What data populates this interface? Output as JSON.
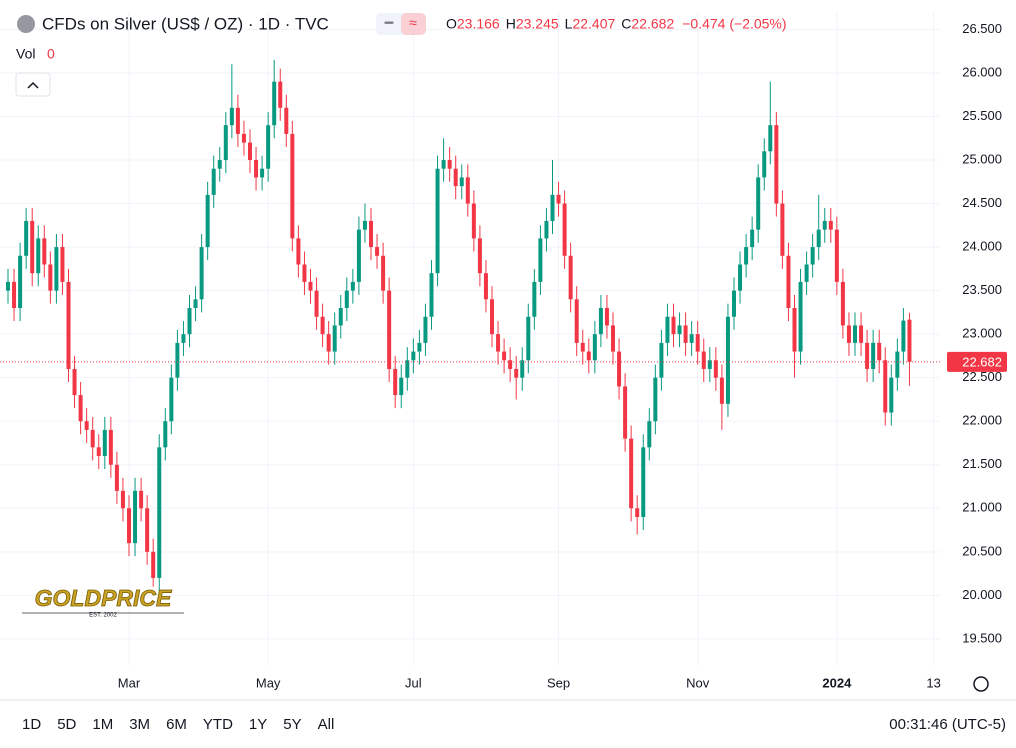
{
  "chart_data": {
    "type": "candlestick",
    "title": "CFDs on Silver (US$ / OZ) · 1D · TVC",
    "legend": {
      "o_label": "O",
      "h_label": "H",
      "l_label": "L",
      "c_label": "C",
      "change": "−0.474 (−2.05%)"
    },
    "volume_label": "Vol",
    "volume": 0,
    "up_color": "#089981",
    "down_color": "#f23645",
    "ylim": [
      19.2,
      26.7
    ],
    "yticks": [
      {
        "value": 19.5,
        "label": "19.500"
      },
      {
        "value": 20,
        "label": "20.000"
      },
      {
        "value": 20.5,
        "label": "20.500"
      },
      {
        "value": 21,
        "label": "21.000"
      },
      {
        "value": 21.5,
        "label": "21.500"
      },
      {
        "value": 22,
        "label": "22.000"
      },
      {
        "value": 22.5,
        "label": "22.500"
      },
      {
        "value": 23,
        "label": "23.000"
      },
      {
        "value": 23.5,
        "label": "23.500"
      },
      {
        "value": 24,
        "label": "24.000"
      },
      {
        "value": 24.5,
        "label": "24.500"
      },
      {
        "value": 25,
        "label": "25.000"
      },
      {
        "value": 25.5,
        "label": "25.500"
      },
      {
        "value": 26,
        "label": "26.000"
      },
      {
        "value": 26.5,
        "label": "26.500"
      }
    ],
    "xticks": [
      {
        "value": 20,
        "label": "Mar"
      },
      {
        "value": 43,
        "label": "May"
      },
      {
        "value": 67,
        "label": "Jul"
      },
      {
        "value": 91,
        "label": "Sep"
      },
      {
        "value": 114,
        "label": "Nov"
      },
      {
        "value": 137,
        "label": "2024"
      },
      {
        "value": 153,
        "label": "13"
      }
    ],
    "grid": true,
    "series": [
      {
        "open": [
          23.5,
          23.6,
          23.3,
          23.9,
          24.3,
          23.7,
          24.1,
          23.8,
          23.5,
          24.0,
          23.6,
          22.6,
          22.3,
          22.0,
          21.9,
          21.7,
          21.6,
          21.9,
          21.5,
          21.2,
          21.0,
          20.6,
          21.2,
          21.0,
          20.5,
          20.2,
          21.7,
          22.0,
          22.5,
          22.9,
          23.0,
          23.3,
          23.4,
          24.0,
          24.6,
          24.9,
          25.0,
          25.4,
          25.6,
          25.3,
          25.2,
          25.0,
          24.8,
          24.9,
          25.4,
          25.9,
          25.6,
          25.3,
          24.1,
          23.8,
          23.6,
          23.5,
          23.2,
          23.0,
          22.8,
          23.1,
          23.3,
          23.5,
          23.6,
          24.2,
          24.3,
          24.0,
          23.9,
          23.5,
          22.6,
          22.3,
          22.5,
          22.7,
          22.8,
          22.9,
          23.2,
          23.7,
          24.9,
          25.0,
          24.9,
          24.7,
          24.8,
          24.5,
          24.1,
          23.7,
          23.4,
          23.0,
          22.8,
          22.7,
          22.6,
          22.5,
          22.7,
          23.2,
          23.6,
          24.1,
          24.3,
          24.6,
          24.5,
          23.9,
          23.4,
          22.9,
          22.8,
          22.7,
          23.0,
          23.3,
          23.1,
          22.8,
          22.4,
          21.8,
          21.0,
          20.9,
          21.7,
          22.0,
          22.5,
          22.9,
          23.2,
          23.0,
          23.1,
          22.9,
          23.0,
          22.8,
          22.6,
          22.7,
          22.5,
          22.2,
          23.2,
          23.5,
          23.8,
          24.0,
          24.2,
          24.8,
          25.1,
          25.4,
          24.5,
          23.9,
          23.3,
          22.8,
          23.6,
          23.8,
          24.0,
          24.2,
          24.3,
          24.2,
          23.6,
          23.1,
          22.9,
          23.1,
          22.9,
          22.6,
          22.9,
          22.7,
          22.1,
          22.5,
          22.8,
          23.166
        ],
        "high": [
          23.75,
          23.75,
          24.05,
          24.45,
          24.45,
          24.25,
          24.25,
          23.95,
          24.15,
          24.15,
          23.75,
          22.75,
          22.45,
          22.15,
          22.05,
          21.85,
          22.05,
          22.05,
          21.65,
          21.35,
          21.15,
          21.35,
          21.35,
          21.15,
          20.65,
          21.85,
          22.15,
          22.65,
          23.05,
          23.15,
          23.45,
          23.55,
          24.15,
          24.75,
          25.05,
          25.15,
          25.55,
          26.1,
          25.75,
          25.45,
          25.35,
          25.15,
          25.05,
          25.55,
          26.15,
          26.05,
          25.75,
          25.45,
          24.25,
          23.95,
          23.75,
          23.65,
          23.35,
          23.15,
          23.25,
          23.45,
          23.65,
          23.75,
          24.35,
          24.5,
          24.45,
          24.15,
          24.05,
          23.65,
          22.75,
          22.65,
          22.85,
          22.95,
          23.05,
          23.35,
          23.85,
          25.05,
          25.25,
          25.15,
          25.05,
          24.95,
          24.95,
          24.65,
          24.25,
          23.85,
          23.55,
          23.15,
          22.95,
          22.85,
          22.75,
          22.85,
          23.35,
          23.75,
          24.25,
          24.45,
          25.0,
          24.75,
          24.65,
          24.05,
          23.55,
          23.05,
          22.95,
          23.15,
          23.45,
          23.45,
          23.25,
          22.95,
          22.55,
          21.95,
          21.15,
          21.85,
          22.15,
          22.65,
          23.05,
          23.35,
          23.35,
          23.25,
          23.25,
          23.15,
          23.15,
          22.95,
          22.85,
          22.85,
          22.65,
          23.35,
          23.65,
          23.95,
          24.15,
          24.35,
          24.95,
          25.25,
          25.9,
          25.55,
          24.65,
          24.05,
          23.45,
          23.75,
          23.95,
          24.15,
          24.6,
          24.45,
          24.45,
          24.35,
          23.75,
          23.25,
          23.25,
          23.25,
          23.05,
          23.05,
          23.05,
          22.85,
          22.65,
          22.95,
          23.3,
          23.245
        ],
        "low": [
          23.35,
          23.15,
          23.15,
          23.75,
          23.55,
          23.55,
          23.65,
          23.35,
          23.35,
          23.45,
          22.45,
          22.15,
          21.85,
          21.75,
          21.55,
          21.45,
          21.45,
          21.35,
          21.05,
          20.85,
          20.45,
          20.45,
          20.85,
          20.35,
          20.1,
          20.05,
          21.55,
          21.85,
          22.35,
          22.75,
          22.85,
          23.15,
          23.25,
          23.85,
          24.45,
          24.75,
          24.85,
          25.25,
          25.15,
          25.05,
          24.85,
          24.65,
          24.65,
          24.75,
          25.25,
          25.45,
          25.15,
          23.95,
          23.65,
          23.45,
          23.35,
          23.05,
          22.85,
          22.65,
          22.65,
          22.95,
          23.15,
          23.35,
          23.45,
          24.05,
          23.85,
          23.75,
          23.35,
          22.45,
          22.15,
          22.15,
          22.35,
          22.55,
          22.65,
          22.75,
          23.05,
          23.55,
          24.75,
          24.75,
          24.55,
          24.55,
          24.35,
          23.95,
          23.55,
          23.25,
          22.85,
          22.65,
          22.55,
          22.45,
          22.25,
          22.35,
          22.55,
          23.05,
          23.45,
          23.95,
          24.15,
          24.35,
          23.75,
          23.25,
          22.75,
          22.65,
          22.55,
          22.55,
          22.85,
          22.95,
          22.65,
          22.25,
          21.65,
          20.85,
          20.7,
          20.75,
          21.55,
          21.85,
          22.35,
          22.75,
          22.85,
          22.85,
          22.75,
          22.75,
          22.65,
          22.45,
          22.45,
          22.35,
          21.9,
          22.05,
          23.05,
          23.35,
          23.65,
          23.85,
          24.05,
          24.65,
          24.95,
          24.35,
          23.75,
          23.15,
          22.5,
          22.65,
          23.45,
          23.65,
          23.85,
          24.05,
          24.05,
          23.45,
          22.95,
          22.75,
          22.75,
          22.75,
          22.45,
          22.45,
          22.55,
          21.95,
          21.95,
          22.35,
          22.65,
          22.407
        ],
        "close": [
          23.6,
          23.3,
          23.9,
          24.3,
          23.7,
          24.1,
          23.8,
          23.5,
          24.0,
          23.6,
          22.6,
          22.3,
          22.0,
          21.9,
          21.7,
          21.6,
          21.9,
          21.5,
          21.2,
          21.0,
          20.6,
          21.2,
          21.0,
          20.5,
          20.2,
          21.7,
          22.0,
          22.5,
          22.9,
          23.0,
          23.3,
          23.4,
          24.0,
          24.6,
          24.9,
          25.0,
          25.4,
          25.6,
          25.3,
          25.2,
          25.0,
          24.8,
          24.9,
          25.4,
          25.9,
          25.6,
          25.3,
          24.1,
          23.8,
          23.6,
          23.5,
          23.2,
          23.0,
          22.8,
          23.1,
          23.3,
          23.5,
          23.6,
          24.2,
          24.3,
          24.0,
          23.9,
          23.5,
          22.6,
          22.3,
          22.5,
          22.7,
          22.8,
          22.9,
          23.2,
          23.7,
          24.9,
          25.0,
          24.9,
          24.7,
          24.8,
          24.5,
          24.1,
          23.7,
          23.4,
          23.0,
          22.8,
          22.7,
          22.6,
          22.5,
          22.7,
          23.2,
          23.6,
          24.1,
          24.3,
          24.6,
          24.5,
          23.9,
          23.4,
          22.9,
          22.8,
          22.7,
          23.0,
          23.3,
          23.1,
          22.8,
          22.4,
          21.8,
          21.0,
          20.9,
          21.7,
          22.0,
          22.5,
          22.9,
          23.2,
          23.0,
          23.1,
          22.9,
          23.0,
          22.8,
          22.6,
          22.7,
          22.5,
          22.2,
          23.2,
          23.5,
          23.8,
          24.0,
          24.2,
          24.8,
          25.1,
          25.4,
          24.5,
          23.9,
          23.3,
          22.8,
          23.6,
          23.8,
          24.0,
          24.2,
          24.3,
          24.2,
          23.6,
          23.1,
          22.9,
          23.1,
          22.9,
          22.6,
          22.9,
          22.7,
          22.1,
          22.5,
          22.8,
          23.156,
          22.682
        ]
      }
    ],
    "watermark": {
      "brand": "GOLDPRICE",
      "est": "EST. 2002"
    },
    "toolbar": {
      "ranges": [
        "1D",
        "5D",
        "1M",
        "3M",
        "6M",
        "YTD",
        "1Y",
        "5Y",
        "All"
      ],
      "clock": "00:31:46 (UTC-5)"
    }
  }
}
